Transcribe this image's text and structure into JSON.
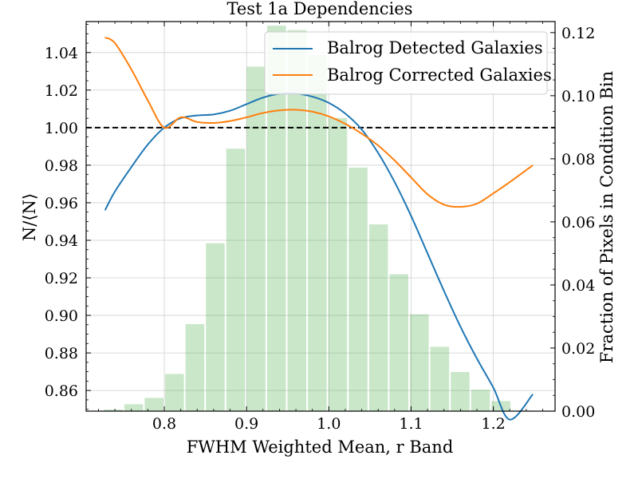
{
  "chart_data": {
    "type": "bar+line",
    "title": "Test 1a Dependencies",
    "xlabel": "FWHM Weighted Mean, r Band",
    "ylabel_left": "N/⟨N⟩",
    "ylabel_right": "Fraction of Pixels in Condition Bin",
    "xlim": [
      0.705,
      1.275
    ],
    "ylim_left": [
      0.849,
      1.0565
    ],
    "ylim_right": [
      0.0,
      0.1235
    ],
    "x_ticks": [
      0.8,
      0.9,
      1.0,
      1.1,
      1.2
    ],
    "x_tick_labels": [
      "0.8",
      "0.9",
      "1.0",
      "1.1",
      "1.2"
    ],
    "y_left_ticks": [
      0.86,
      0.88,
      0.9,
      0.92,
      0.94,
      0.96,
      0.98,
      1.0,
      1.02,
      1.04
    ],
    "y_left_tick_labels": [
      "0.86",
      "0.88",
      "0.90",
      "0.92",
      "0.94",
      "0.96",
      "0.98",
      "1.00",
      "1.02",
      "1.04"
    ],
    "y_right_ticks": [
      0.0,
      0.02,
      0.04,
      0.06,
      0.08,
      0.1,
      0.12
    ],
    "y_right_tick_labels": [
      "0.00",
      "0.02",
      "0.04",
      "0.06",
      "0.08",
      "0.10",
      "0.12"
    ],
    "grid": true,
    "reference_line": {
      "y": 1.0,
      "style": "dashed",
      "color": "#000000"
    },
    "histogram": {
      "axis": "right",
      "color": "#2ca02c",
      "bin_centers": [
        0.738,
        0.7628,
        0.7876,
        0.8124,
        0.8372,
        0.862,
        0.8868,
        0.9116,
        0.9364,
        0.9612,
        0.986,
        1.0108,
        1.0356,
        1.0604,
        1.0852,
        1.11,
        1.1348,
        1.1596,
        1.1844,
        1.2092,
        1.234
      ],
      "values": [
        0.0005,
        0.0022,
        0.0042,
        0.0118,
        0.0276,
        0.0532,
        0.0832,
        0.1092,
        0.1222,
        0.1208,
        0.1129,
        0.0929,
        0.0772,
        0.0592,
        0.0434,
        0.0307,
        0.0204,
        0.0124,
        0.0068,
        0.0032,
        0.0002
      ]
    },
    "series": [
      {
        "name": "Balrog Detected Galaxies",
        "axis": "left",
        "color": "#1f77b4",
        "x": [
          0.728,
          0.74,
          0.76,
          0.78,
          0.8,
          0.82,
          0.84,
          0.86,
          0.88,
          0.9,
          0.92,
          0.94,
          0.96,
          0.98,
          1.0,
          1.02,
          1.04,
          1.06,
          1.08,
          1.1,
          1.12,
          1.14,
          1.16,
          1.18,
          1.2,
          1.22,
          1.248
        ],
        "y": [
          0.956,
          0.966,
          0.979,
          0.991,
          1.0,
          1.005,
          1.0065,
          1.007,
          1.009,
          1.0125,
          1.016,
          1.018,
          1.0182,
          1.0165,
          1.0132,
          1.0075,
          0.999,
          0.9865,
          0.971,
          0.953,
          0.933,
          0.913,
          0.894,
          0.877,
          0.8615,
          0.8445,
          0.858
        ]
      },
      {
        "name": "Balrog Corrected Galaxies",
        "axis": "left",
        "color": "#ff7f0e",
        "x": [
          0.728,
          0.74,
          0.76,
          0.78,
          0.8,
          0.82,
          0.84,
          0.86,
          0.88,
          0.9,
          0.92,
          0.94,
          0.96,
          0.98,
          1.0,
          1.02,
          1.04,
          1.06,
          1.08,
          1.1,
          1.12,
          1.14,
          1.16,
          1.18,
          1.2,
          1.22,
          1.248
        ],
        "y": [
          1.048,
          1.045,
          1.031,
          1.0145,
          1.0,
          1.0055,
          1.003,
          1.0025,
          1.0035,
          1.0055,
          1.0078,
          1.0092,
          1.0095,
          1.0085,
          1.006,
          1.002,
          0.9968,
          0.9905,
          0.9825,
          0.9735,
          0.9645,
          0.959,
          0.9578,
          0.9595,
          0.965,
          0.971,
          0.98
        ]
      }
    ],
    "legend": {
      "placement": "top-right"
    }
  }
}
